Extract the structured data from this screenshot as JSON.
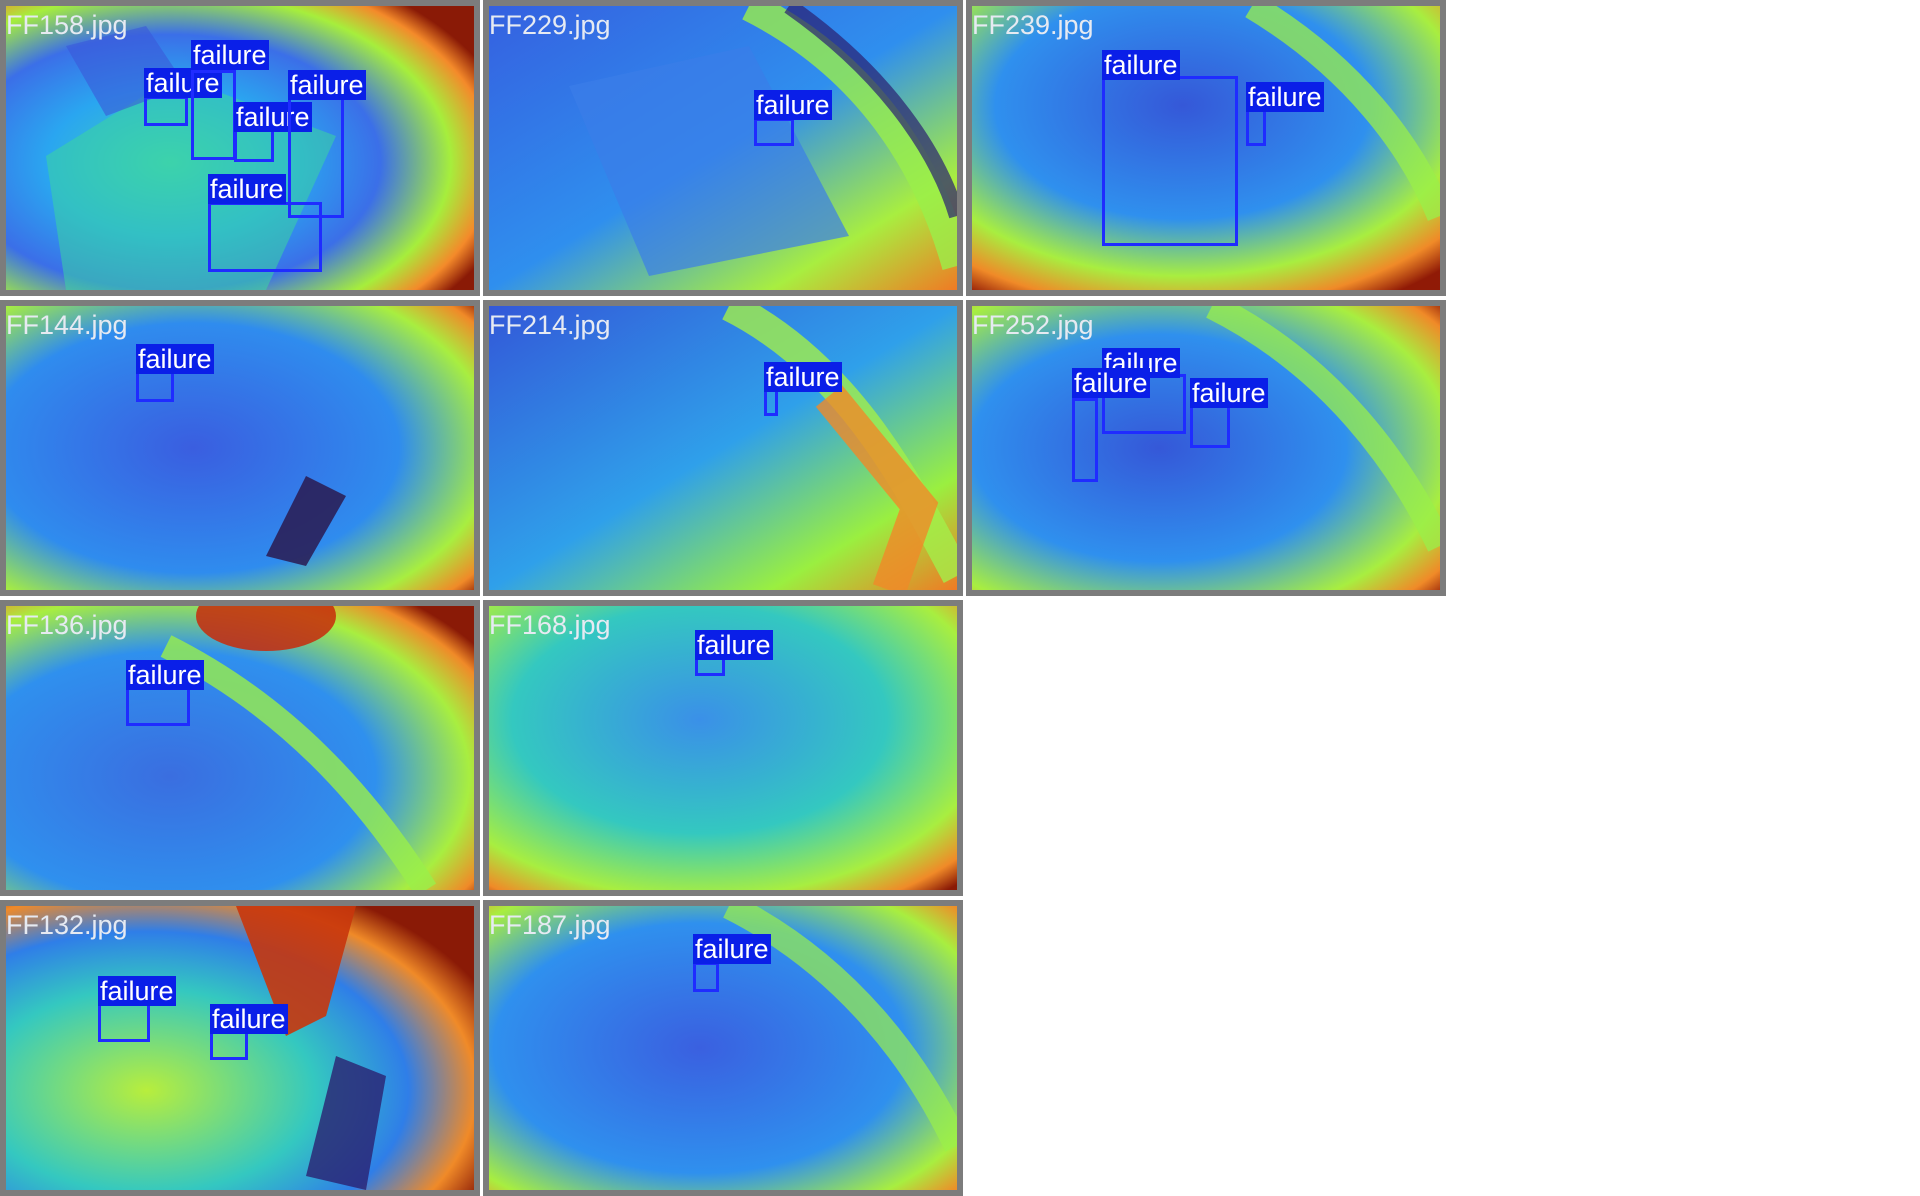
{
  "tiles": [
    {
      "file": "FF158.jpg",
      "detections": [
        {
          "label": "failure"
        },
        {
          "label": "failure"
        },
        {
          "label": "failure"
        },
        {
          "label": "failure"
        },
        {
          "label": "failure"
        }
      ]
    },
    {
      "file": "FF229.jpg",
      "detections": [
        {
          "label": "failure"
        }
      ]
    },
    {
      "file": "FF239.jpg",
      "detections": [
        {
          "label": "failure"
        },
        {
          "label": "failure"
        }
      ]
    },
    {
      "file": "FF144.jpg",
      "detections": [
        {
          "label": "failure"
        }
      ]
    },
    {
      "file": "FF214.jpg",
      "detections": [
        {
          "label": "failure"
        }
      ]
    },
    {
      "file": "FF252.jpg",
      "detections": [
        {
          "label": "failure"
        },
        {
          "label": "failure"
        },
        {
          "label": "failure"
        }
      ]
    },
    {
      "file": "FF136.jpg",
      "detections": [
        {
          "label": "failure"
        }
      ]
    },
    {
      "file": "FF168.jpg",
      "detections": [
        {
          "label": "failure"
        }
      ]
    },
    {
      "file": "FF132.jpg",
      "detections": [
        {
          "label": "failure"
        },
        {
          "label": "failure"
        }
      ]
    },
    {
      "file": "FF187.jpg",
      "detections": [
        {
          "label": "failure"
        }
      ]
    }
  ],
  "colors": {
    "box": "#1f2cff",
    "label_bg": "#0a1fe8",
    "frame": "#7c7c7c"
  }
}
